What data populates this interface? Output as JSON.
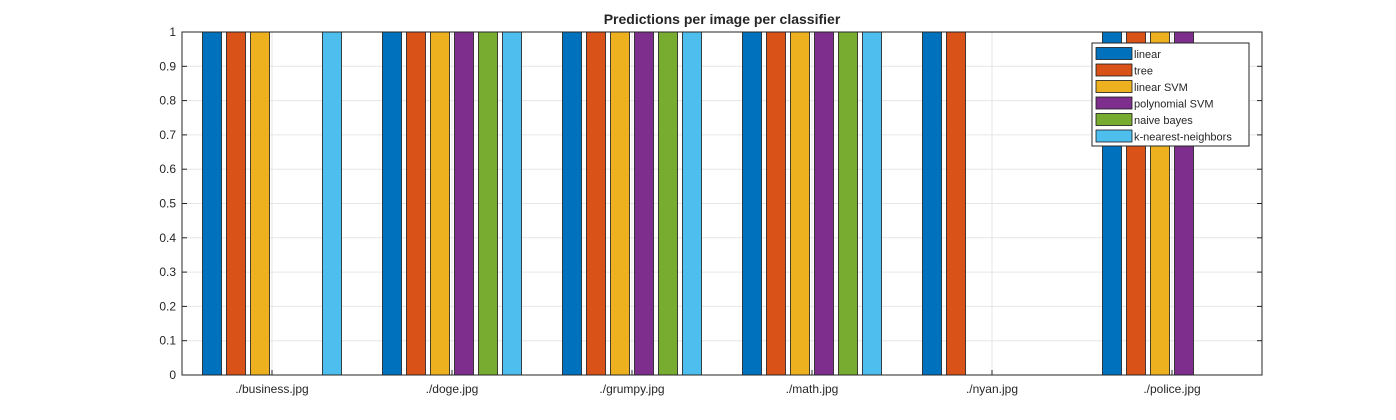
{
  "chart_data": {
    "type": "bar",
    "title": "Predictions per image per classifier",
    "xlabel": "",
    "ylabel": "",
    "ylim": [
      0,
      1
    ],
    "yticks": [
      "0",
      "0.1",
      "0.2",
      "0.3",
      "0.4",
      "0.5",
      "0.6",
      "0.7",
      "0.8",
      "0.9",
      "1"
    ],
    "grid": true,
    "legend_position": "top-right",
    "categories": [
      "./business.jpg",
      "./doge.jpg",
      "./grumpy.jpg",
      "./math.jpg",
      "./nyan.jpg",
      "./police.jpg"
    ],
    "series": [
      {
        "name": "linear",
        "color": "#0072BD",
        "values": [
          1,
          1,
          1,
          1,
          1,
          1
        ]
      },
      {
        "name": "tree",
        "color": "#D95319",
        "values": [
          1,
          1,
          1,
          1,
          1,
          1
        ]
      },
      {
        "name": "linear SVM",
        "color": "#EDB120",
        "values": [
          1,
          1,
          1,
          1,
          0,
          1
        ]
      },
      {
        "name": "polynomial SVM",
        "color": "#7E2F8E",
        "values": [
          0,
          1,
          1,
          1,
          0,
          1
        ]
      },
      {
        "name": "naive bayes",
        "color": "#77AC30",
        "values": [
          0,
          1,
          1,
          1,
          0,
          0
        ]
      },
      {
        "name": "k-nearest-neighbors",
        "color": "#4DBEEE",
        "values": [
          1,
          1,
          1,
          1,
          0,
          0
        ]
      }
    ]
  }
}
